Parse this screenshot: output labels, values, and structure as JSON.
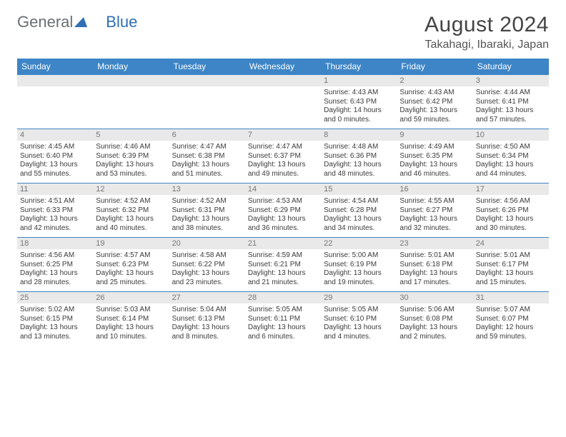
{
  "logo": {
    "general": "General",
    "blue": "Blue"
  },
  "title": "August 2024",
  "location": "Takahagi, Ibaraki, Japan",
  "colors": {
    "header_bg": "#3d85c6",
    "header_text": "#ffffff",
    "daynum_bg": "#e9e9e9",
    "daynum_text": "#777777",
    "body_text": "#3b3b3b",
    "logo_gray": "#6a6f74",
    "logo_blue": "#2f6fb3"
  },
  "weekdays": [
    "Sunday",
    "Monday",
    "Tuesday",
    "Wednesday",
    "Thursday",
    "Friday",
    "Saturday"
  ],
  "weeks": [
    [
      null,
      null,
      null,
      null,
      {
        "n": "1",
        "sr": "Sunrise: 4:43 AM",
        "ss": "Sunset: 6:43 PM",
        "dl1": "Daylight: 14 hours",
        "dl2": "and 0 minutes."
      },
      {
        "n": "2",
        "sr": "Sunrise: 4:43 AM",
        "ss": "Sunset: 6:42 PM",
        "dl1": "Daylight: 13 hours",
        "dl2": "and 59 minutes."
      },
      {
        "n": "3",
        "sr": "Sunrise: 4:44 AM",
        "ss": "Sunset: 6:41 PM",
        "dl1": "Daylight: 13 hours",
        "dl2": "and 57 minutes."
      }
    ],
    [
      {
        "n": "4",
        "sr": "Sunrise: 4:45 AM",
        "ss": "Sunset: 6:40 PM",
        "dl1": "Daylight: 13 hours",
        "dl2": "and 55 minutes."
      },
      {
        "n": "5",
        "sr": "Sunrise: 4:46 AM",
        "ss": "Sunset: 6:39 PM",
        "dl1": "Daylight: 13 hours",
        "dl2": "and 53 minutes."
      },
      {
        "n": "6",
        "sr": "Sunrise: 4:47 AM",
        "ss": "Sunset: 6:38 PM",
        "dl1": "Daylight: 13 hours",
        "dl2": "and 51 minutes."
      },
      {
        "n": "7",
        "sr": "Sunrise: 4:47 AM",
        "ss": "Sunset: 6:37 PM",
        "dl1": "Daylight: 13 hours",
        "dl2": "and 49 minutes."
      },
      {
        "n": "8",
        "sr": "Sunrise: 4:48 AM",
        "ss": "Sunset: 6:36 PM",
        "dl1": "Daylight: 13 hours",
        "dl2": "and 48 minutes."
      },
      {
        "n": "9",
        "sr": "Sunrise: 4:49 AM",
        "ss": "Sunset: 6:35 PM",
        "dl1": "Daylight: 13 hours",
        "dl2": "and 46 minutes."
      },
      {
        "n": "10",
        "sr": "Sunrise: 4:50 AM",
        "ss": "Sunset: 6:34 PM",
        "dl1": "Daylight: 13 hours",
        "dl2": "and 44 minutes."
      }
    ],
    [
      {
        "n": "11",
        "sr": "Sunrise: 4:51 AM",
        "ss": "Sunset: 6:33 PM",
        "dl1": "Daylight: 13 hours",
        "dl2": "and 42 minutes."
      },
      {
        "n": "12",
        "sr": "Sunrise: 4:52 AM",
        "ss": "Sunset: 6:32 PM",
        "dl1": "Daylight: 13 hours",
        "dl2": "and 40 minutes."
      },
      {
        "n": "13",
        "sr": "Sunrise: 4:52 AM",
        "ss": "Sunset: 6:31 PM",
        "dl1": "Daylight: 13 hours",
        "dl2": "and 38 minutes."
      },
      {
        "n": "14",
        "sr": "Sunrise: 4:53 AM",
        "ss": "Sunset: 6:29 PM",
        "dl1": "Daylight: 13 hours",
        "dl2": "and 36 minutes."
      },
      {
        "n": "15",
        "sr": "Sunrise: 4:54 AM",
        "ss": "Sunset: 6:28 PM",
        "dl1": "Daylight: 13 hours",
        "dl2": "and 34 minutes."
      },
      {
        "n": "16",
        "sr": "Sunrise: 4:55 AM",
        "ss": "Sunset: 6:27 PM",
        "dl1": "Daylight: 13 hours",
        "dl2": "and 32 minutes."
      },
      {
        "n": "17",
        "sr": "Sunrise: 4:56 AM",
        "ss": "Sunset: 6:26 PM",
        "dl1": "Daylight: 13 hours",
        "dl2": "and 30 minutes."
      }
    ],
    [
      {
        "n": "18",
        "sr": "Sunrise: 4:56 AM",
        "ss": "Sunset: 6:25 PM",
        "dl1": "Daylight: 13 hours",
        "dl2": "and 28 minutes."
      },
      {
        "n": "19",
        "sr": "Sunrise: 4:57 AM",
        "ss": "Sunset: 6:23 PM",
        "dl1": "Daylight: 13 hours",
        "dl2": "and 25 minutes."
      },
      {
        "n": "20",
        "sr": "Sunrise: 4:58 AM",
        "ss": "Sunset: 6:22 PM",
        "dl1": "Daylight: 13 hours",
        "dl2": "and 23 minutes."
      },
      {
        "n": "21",
        "sr": "Sunrise: 4:59 AM",
        "ss": "Sunset: 6:21 PM",
        "dl1": "Daylight: 13 hours",
        "dl2": "and 21 minutes."
      },
      {
        "n": "22",
        "sr": "Sunrise: 5:00 AM",
        "ss": "Sunset: 6:19 PM",
        "dl1": "Daylight: 13 hours",
        "dl2": "and 19 minutes."
      },
      {
        "n": "23",
        "sr": "Sunrise: 5:01 AM",
        "ss": "Sunset: 6:18 PM",
        "dl1": "Daylight: 13 hours",
        "dl2": "and 17 minutes."
      },
      {
        "n": "24",
        "sr": "Sunrise: 5:01 AM",
        "ss": "Sunset: 6:17 PM",
        "dl1": "Daylight: 13 hours",
        "dl2": "and 15 minutes."
      }
    ],
    [
      {
        "n": "25",
        "sr": "Sunrise: 5:02 AM",
        "ss": "Sunset: 6:15 PM",
        "dl1": "Daylight: 13 hours",
        "dl2": "and 13 minutes."
      },
      {
        "n": "26",
        "sr": "Sunrise: 5:03 AM",
        "ss": "Sunset: 6:14 PM",
        "dl1": "Daylight: 13 hours",
        "dl2": "and 10 minutes."
      },
      {
        "n": "27",
        "sr": "Sunrise: 5:04 AM",
        "ss": "Sunset: 6:13 PM",
        "dl1": "Daylight: 13 hours",
        "dl2": "and 8 minutes."
      },
      {
        "n": "28",
        "sr": "Sunrise: 5:05 AM",
        "ss": "Sunset: 6:11 PM",
        "dl1": "Daylight: 13 hours",
        "dl2": "and 6 minutes."
      },
      {
        "n": "29",
        "sr": "Sunrise: 5:05 AM",
        "ss": "Sunset: 6:10 PM",
        "dl1": "Daylight: 13 hours",
        "dl2": "and 4 minutes."
      },
      {
        "n": "30",
        "sr": "Sunrise: 5:06 AM",
        "ss": "Sunset: 6:08 PM",
        "dl1": "Daylight: 13 hours",
        "dl2": "and 2 minutes."
      },
      {
        "n": "31",
        "sr": "Sunrise: 5:07 AM",
        "ss": "Sunset: 6:07 PM",
        "dl1": "Daylight: 12 hours",
        "dl2": "and 59 minutes."
      }
    ]
  ]
}
